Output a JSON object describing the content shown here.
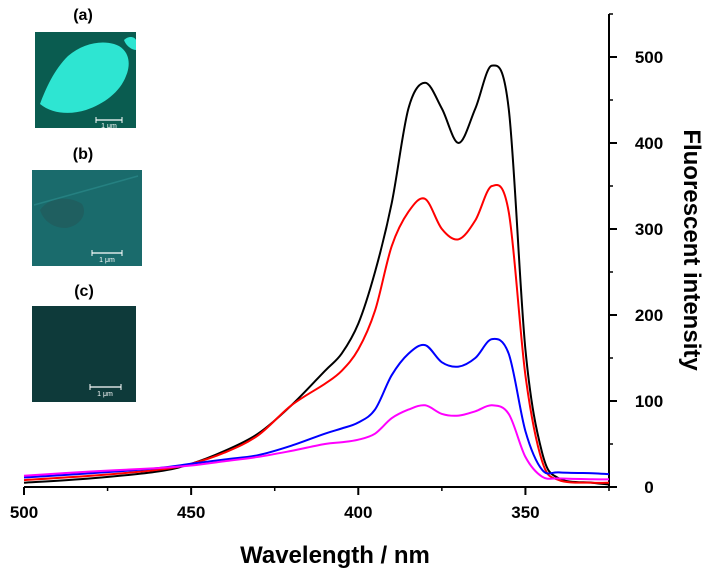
{
  "chart_data": {
    "type": "line",
    "x_axis_reversed": true,
    "xlabel": "Wavelength / nm",
    "ylabel": "Fluorescent intensity",
    "xlim": [
      325,
      500
    ],
    "ylim": [
      0,
      550
    ],
    "x_ticks": [
      500,
      450,
      400,
      350
    ],
    "y_ticks": [
      0,
      100,
      200,
      300,
      400,
      500
    ],
    "y_axis_side": "right",
    "grid": false,
    "series": [
      {
        "color": "#000000",
        "points": [
          [
            500,
            5
          ],
          [
            480,
            10
          ],
          [
            460,
            18
          ],
          [
            450,
            27
          ],
          [
            440,
            42
          ],
          [
            430,
            62
          ],
          [
            420,
            95
          ],
          [
            410,
            135
          ],
          [
            405,
            155
          ],
          [
            400,
            190
          ],
          [
            395,
            250
          ],
          [
            390,
            330
          ],
          [
            385,
            440
          ],
          [
            380,
            470
          ],
          [
            375,
            440
          ],
          [
            370,
            400
          ],
          [
            365,
            440
          ],
          [
            360,
            490
          ],
          [
            355,
            440
          ],
          [
            350,
            160
          ],
          [
            345,
            40
          ],
          [
            340,
            10
          ],
          [
            330,
            5
          ],
          [
            325,
            3
          ]
        ]
      },
      {
        "color": "#ff0000",
        "points": [
          [
            500,
            8
          ],
          [
            480,
            13
          ],
          [
            460,
            20
          ],
          [
            450,
            27
          ],
          [
            440,
            40
          ],
          [
            430,
            60
          ],
          [
            420,
            95
          ],
          [
            410,
            120
          ],
          [
            405,
            135
          ],
          [
            400,
            160
          ],
          [
            395,
            205
          ],
          [
            390,
            280
          ],
          [
            385,
            320
          ],
          [
            380,
            335
          ],
          [
            375,
            300
          ],
          [
            370,
            288
          ],
          [
            365,
            310
          ],
          [
            360,
            350
          ],
          [
            355,
            320
          ],
          [
            350,
            130
          ],
          [
            345,
            30
          ],
          [
            340,
            8
          ],
          [
            330,
            5
          ],
          [
            325,
            5
          ]
        ]
      },
      {
        "color": "#0000ff",
        "points": [
          [
            500,
            11
          ],
          [
            480,
            16
          ],
          [
            460,
            22
          ],
          [
            450,
            27
          ],
          [
            440,
            32
          ],
          [
            430,
            37
          ],
          [
            420,
            48
          ],
          [
            410,
            62
          ],
          [
            405,
            68
          ],
          [
            400,
            75
          ],
          [
            395,
            90
          ],
          [
            390,
            130
          ],
          [
            385,
            155
          ],
          [
            380,
            165
          ],
          [
            375,
            145
          ],
          [
            370,
            140
          ],
          [
            365,
            150
          ],
          [
            360,
            172
          ],
          [
            355,
            155
          ],
          [
            350,
            65
          ],
          [
            345,
            20
          ],
          [
            340,
            17
          ],
          [
            330,
            16
          ],
          [
            325,
            15
          ]
        ]
      },
      {
        "color": "#ff00ff",
        "points": [
          [
            500,
            13
          ],
          [
            480,
            18
          ],
          [
            460,
            22
          ],
          [
            450,
            25
          ],
          [
            440,
            30
          ],
          [
            430,
            35
          ],
          [
            420,
            42
          ],
          [
            410,
            50
          ],
          [
            405,
            52
          ],
          [
            400,
            55
          ],
          [
            395,
            62
          ],
          [
            390,
            80
          ],
          [
            385,
            90
          ],
          [
            380,
            95
          ],
          [
            375,
            85
          ],
          [
            370,
            83
          ],
          [
            365,
            88
          ],
          [
            360,
            95
          ],
          [
            355,
            85
          ],
          [
            350,
            35
          ],
          [
            345,
            12
          ],
          [
            340,
            10
          ],
          [
            330,
            9
          ],
          [
            325,
            9
          ]
        ]
      }
    ]
  },
  "insets": [
    {
      "label": "(a)",
      "scale_text": "1 μm",
      "background": "#0a5c50",
      "feature_color": "#2ee5d2"
    },
    {
      "label": "(b)",
      "scale_text": "1 μm",
      "background": "#1a6b6c",
      "feature_color": "#1f5f60"
    },
    {
      "label": "(c)",
      "scale_text": "1 μm",
      "background": "#0e3a3a",
      "feature_color": "#0a2e2e"
    }
  ]
}
